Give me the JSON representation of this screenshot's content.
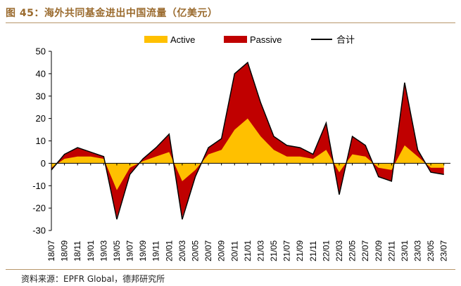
{
  "header": {
    "title": "图 45：海外共同基金进出中国流量（亿美元）"
  },
  "footer": {
    "source": "资料来源：EPFR Global，德邦研究所"
  },
  "colors": {
    "active": "#FFC000",
    "passive": "#C00000",
    "total": "#000000",
    "title": "#9a6a2d"
  },
  "chart_data": {
    "type": "area",
    "title": "",
    "xlabel": "",
    "ylabel": "",
    "ylim": [
      -30,
      50
    ],
    "yticks": [
      -30,
      -20,
      -10,
      0,
      10,
      20,
      30,
      40,
      50
    ],
    "legend_position": "top",
    "legend": [
      "Active",
      "Passive",
      "合计"
    ],
    "x_tick_labels": [
      "18/07",
      "18/09",
      "18/11",
      "19/01",
      "19/03",
      "19/05",
      "19/07",
      "19/09",
      "19/11",
      "20/01",
      "20/03",
      "20/05",
      "20/07",
      "20/09",
      "20/11",
      "21/01",
      "21/03",
      "21/05",
      "21/07",
      "21/09",
      "21/11",
      "22/01",
      "22/03",
      "22/05",
      "22/07",
      "22/09",
      "22/11",
      "23/01",
      "23/03",
      "23/05",
      "23/07"
    ],
    "x_range": [
      "2018-07",
      "2023-08"
    ],
    "series": [
      {
        "name": "Active",
        "kind": "stacked-area",
        "points": [
          [
            "2018-07",
            -2
          ],
          [
            "2018-09",
            2
          ],
          [
            "2018-11",
            3
          ],
          [
            "2019-01",
            3
          ],
          [
            "2019-03",
            2
          ],
          [
            "2019-05",
            -12
          ],
          [
            "2019-07",
            -2
          ],
          [
            "2019-09",
            1
          ],
          [
            "2019-11",
            3
          ],
          [
            "2020-01",
            5
          ],
          [
            "2020-03",
            -8
          ],
          [
            "2020-05",
            -3
          ],
          [
            "2020-07",
            4
          ],
          [
            "2020-09",
            6
          ],
          [
            "2020-11",
            15
          ],
          [
            "2021-01",
            20
          ],
          [
            "2021-03",
            12
          ],
          [
            "2021-05",
            6
          ],
          [
            "2021-07",
            3
          ],
          [
            "2021-09",
            3
          ],
          [
            "2021-11",
            2
          ],
          [
            "2022-01",
            6
          ],
          [
            "2022-03",
            -4
          ],
          [
            "2022-05",
            4
          ],
          [
            "2022-07",
            3
          ],
          [
            "2022-09",
            -2
          ],
          [
            "2022-11",
            -3
          ],
          [
            "2023-01",
            8
          ],
          [
            "2023-03",
            3
          ],
          [
            "2023-05",
            -2
          ],
          [
            "2023-07",
            -2
          ]
        ]
      },
      {
        "name": "Passive",
        "kind": "stacked-area",
        "points": [
          [
            "2018-07",
            -1
          ],
          [
            "2018-09",
            2
          ],
          [
            "2018-11",
            4
          ],
          [
            "2019-01",
            2
          ],
          [
            "2019-03",
            1
          ],
          [
            "2019-05",
            -12
          ],
          [
            "2019-07",
            -3
          ],
          [
            "2019-09",
            1
          ],
          [
            "2019-11",
            4
          ],
          [
            "2020-01",
            8
          ],
          [
            "2020-03",
            -16
          ],
          [
            "2020-05",
            -3
          ],
          [
            "2020-07",
            3
          ],
          [
            "2020-09",
            5
          ],
          [
            "2020-11",
            25
          ],
          [
            "2021-01",
            25
          ],
          [
            "2021-03",
            15
          ],
          [
            "2021-05",
            6
          ],
          [
            "2021-07",
            5
          ],
          [
            "2021-09",
            4
          ],
          [
            "2021-11",
            2
          ],
          [
            "2022-01",
            12
          ],
          [
            "2022-03",
            -10
          ],
          [
            "2022-05",
            8
          ],
          [
            "2022-07",
            5
          ],
          [
            "2022-09",
            -4
          ],
          [
            "2022-11",
            -5
          ],
          [
            "2023-01",
            28
          ],
          [
            "2023-03",
            3
          ],
          [
            "2023-05",
            -2
          ],
          [
            "2023-07",
            -3
          ]
        ]
      },
      {
        "name": "合计",
        "kind": "line",
        "points": [
          [
            "2018-07",
            -3
          ],
          [
            "2018-09",
            4
          ],
          [
            "2018-11",
            7
          ],
          [
            "2019-01",
            5
          ],
          [
            "2019-03",
            3
          ],
          [
            "2019-05",
            -25
          ],
          [
            "2019-07",
            -5
          ],
          [
            "2019-09",
            2
          ],
          [
            "2019-11",
            7
          ],
          [
            "2020-01",
            13
          ],
          [
            "2020-03",
            -25
          ],
          [
            "2020-05",
            -6
          ],
          [
            "2020-07",
            7
          ],
          [
            "2020-09",
            11
          ],
          [
            "2020-11",
            40
          ],
          [
            "2021-01",
            45
          ],
          [
            "2021-03",
            27
          ],
          [
            "2021-05",
            12
          ],
          [
            "2021-07",
            8
          ],
          [
            "2021-09",
            7
          ],
          [
            "2021-11",
            4
          ],
          [
            "2022-01",
            18
          ],
          [
            "2022-03",
            -14
          ],
          [
            "2022-05",
            12
          ],
          [
            "2022-07",
            8
          ],
          [
            "2022-09",
            -6
          ],
          [
            "2022-11",
            -8
          ],
          [
            "2023-01",
            36
          ],
          [
            "2023-03",
            6
          ],
          [
            "2023-05",
            -4
          ],
          [
            "2023-07",
            -5
          ]
        ]
      }
    ]
  }
}
